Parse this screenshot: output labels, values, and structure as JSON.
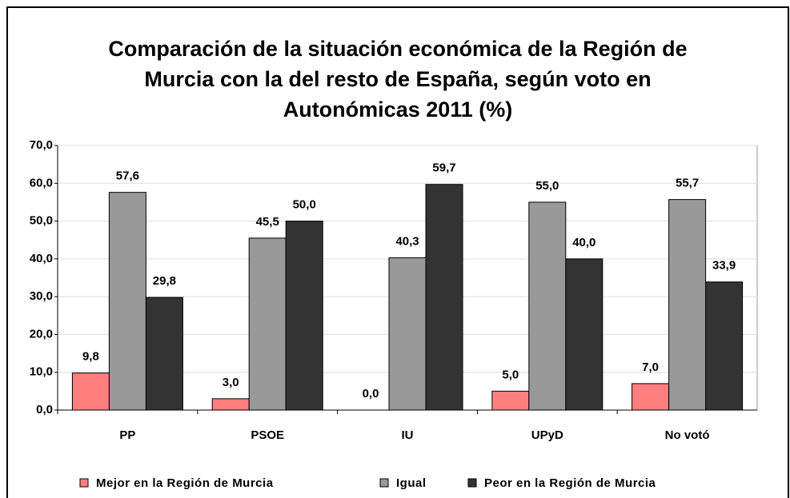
{
  "chart_data": {
    "type": "bar",
    "title": "Comparación de la situación económica de la Región de Murcia con la del resto de España, según voto en Autonómicas 2011 (%)",
    "categories": [
      "PP",
      "PSOE",
      "IU",
      "UPyD",
      "No votó"
    ],
    "series": [
      {
        "name": "Mejor en la Región de Murcia",
        "color": "#ff7f7f",
        "values": [
          9.8,
          3.0,
          0.0,
          5.0,
          7.0
        ],
        "value_labels": [
          "9,8",
          "3,0",
          "0,0",
          "5,0",
          "7,0"
        ]
      },
      {
        "name": "Igual",
        "color": "#999999",
        "values": [
          57.6,
          45.5,
          40.3,
          55.0,
          55.7
        ],
        "value_labels": [
          "57,6",
          "45,5",
          "40,3",
          "55,0",
          "55,7"
        ]
      },
      {
        "name": "Peor en la Región de Murcia",
        "color": "#333333",
        "values": [
          29.8,
          50.0,
          59.7,
          40.0,
          33.9
        ],
        "value_labels": [
          "29,8",
          "50,0",
          "59,7",
          "40,0",
          "33,9"
        ]
      }
    ],
    "ylim": [
      0,
      70
    ],
    "yticks": [
      {
        "value": 0,
        "label": "0,0"
      },
      {
        "value": 10,
        "label": "10,0"
      },
      {
        "value": 20,
        "label": "20,0"
      },
      {
        "value": 30,
        "label": "30,0"
      },
      {
        "value": 40,
        "label": "40,0"
      },
      {
        "value": 50,
        "label": "50,0"
      },
      {
        "value": 60,
        "label": "60,0"
      },
      {
        "value": 70,
        "label": "70,0"
      }
    ],
    "grid": true,
    "legend": "bottom"
  }
}
